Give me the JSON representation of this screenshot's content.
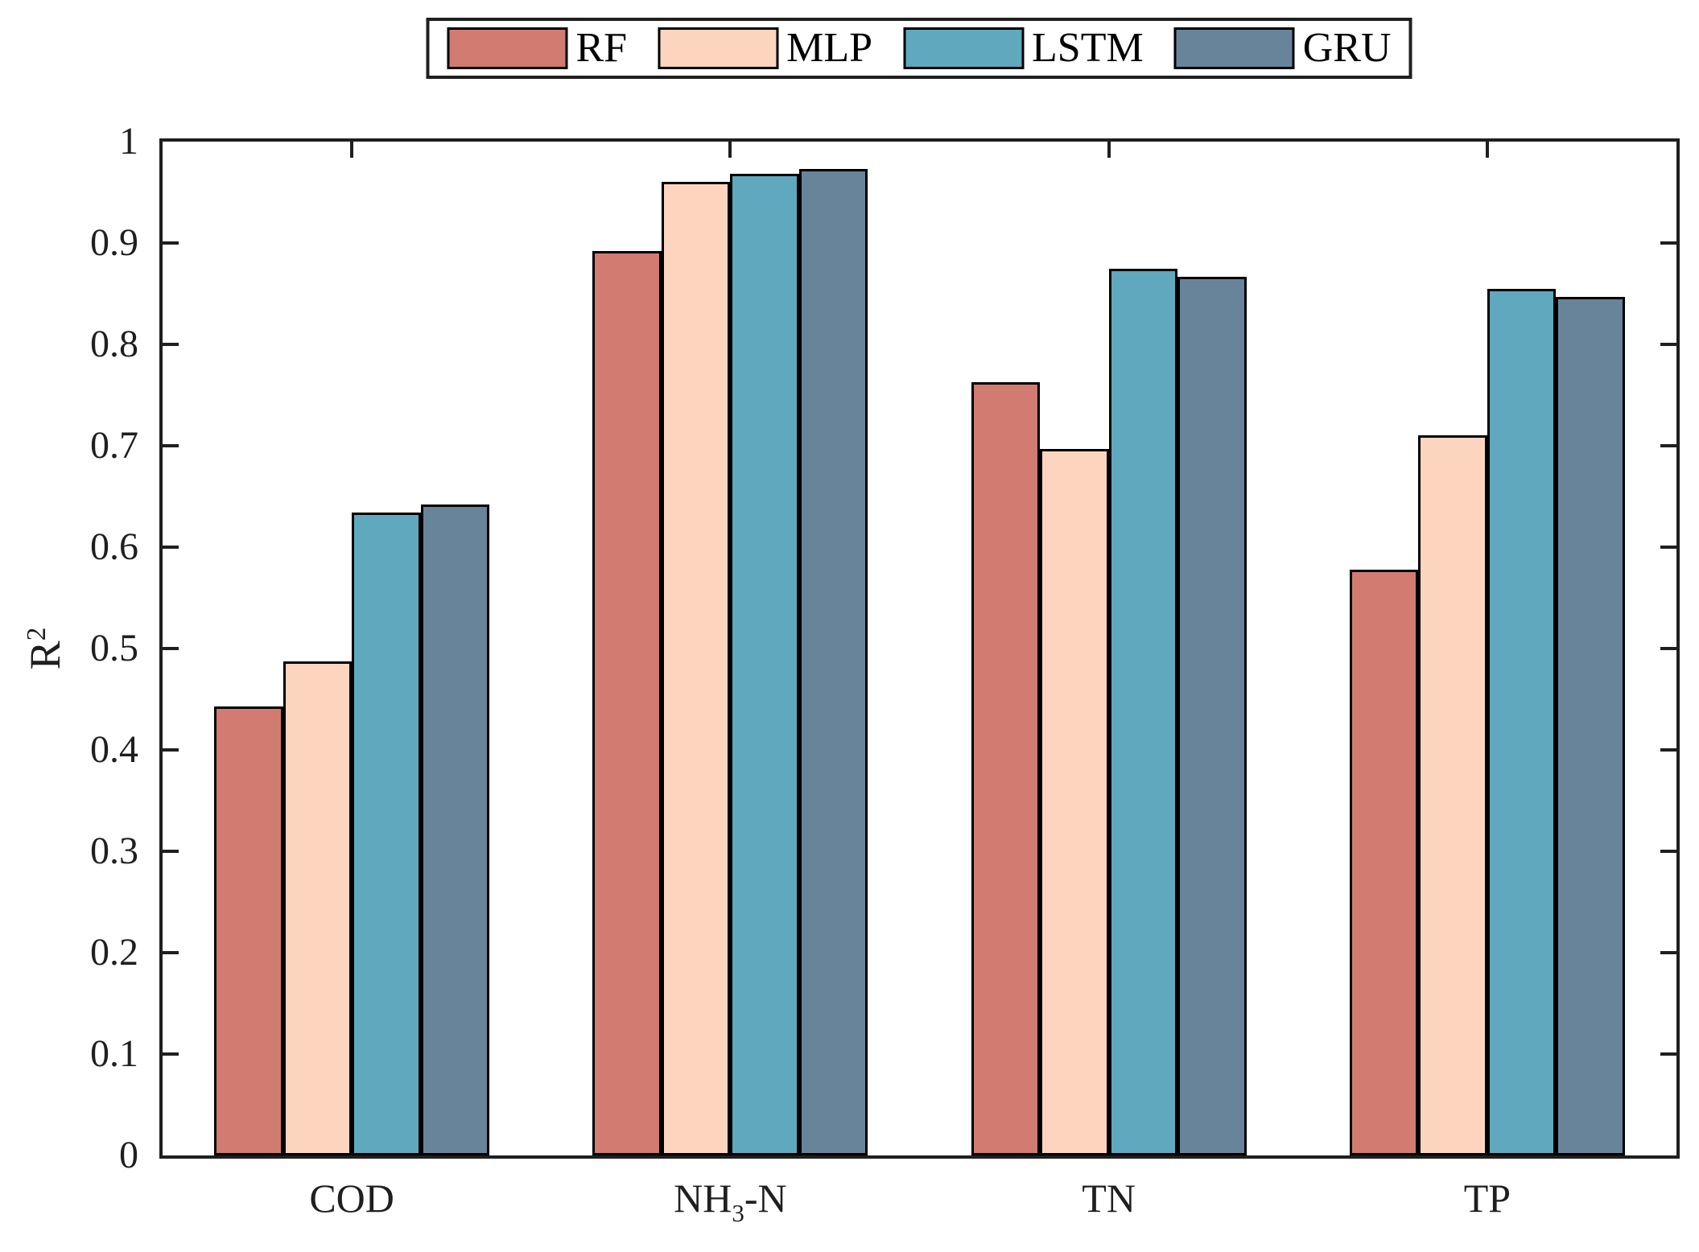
{
  "figure": {
    "background": "#ffffff",
    "axis_color": "#1f1f1f",
    "bar_edge_color": "#000000"
  },
  "chart_data": {
    "type": "bar",
    "title": "",
    "xlabel": "",
    "ylabel": "R^2",
    "ylabel_parts": [
      {
        "t": "R"
      },
      {
        "t": "2",
        "sup": true
      }
    ],
    "ylim": [
      0,
      1
    ],
    "ytick_step": 0.1,
    "ytick_labels": [
      "0",
      "0.1",
      "0.2",
      "0.3",
      "0.4",
      "0.5",
      "0.6",
      "0.7",
      "0.8",
      "0.9",
      "1"
    ],
    "grid": false,
    "legend_position": "top-center",
    "categories": [
      "COD",
      "NH3-N",
      "TN",
      "TP"
    ],
    "category_label_parts": [
      [
        {
          "t": "COD"
        }
      ],
      [
        {
          "t": "NH"
        },
        {
          "t": "3",
          "sub": true
        },
        {
          "t": "-N"
        }
      ],
      [
        {
          "t": "TN"
        }
      ],
      [
        {
          "t": "TP"
        }
      ]
    ],
    "series": [
      {
        "name": "RF",
        "color": "#D17B71",
        "values": [
          0.443,
          0.892,
          0.763,
          0.578
        ]
      },
      {
        "name": "MLP",
        "color": "#FDD5BE",
        "values": [
          0.487,
          0.96,
          0.697,
          0.71
        ]
      },
      {
        "name": "LSTM",
        "color": "#5FA8BE",
        "values": [
          0.634,
          0.968,
          0.875,
          0.855
        ]
      },
      {
        "name": "GRU",
        "color": "#68849B",
        "values": [
          0.642,
          0.973,
          0.867,
          0.847
        ]
      }
    ]
  }
}
